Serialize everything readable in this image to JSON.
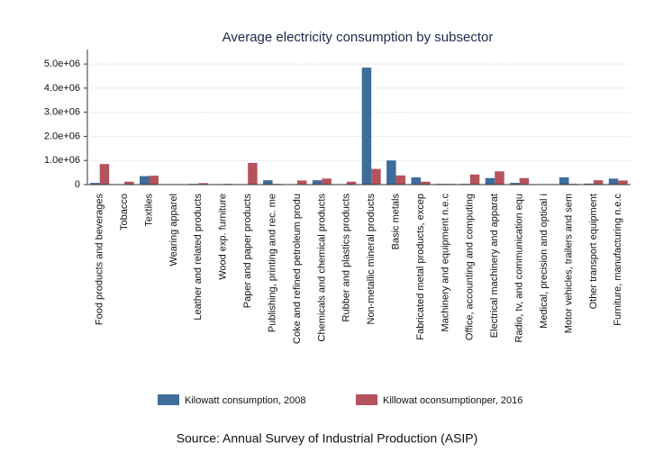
{
  "chart_data": {
    "type": "bar",
    "title": "Average electricity consumption by subsector",
    "categories": [
      "Food products and beverages",
      "Tobacco",
      "Textiles",
      "Wearing apparel",
      "Leather and related products",
      "Wood exp. furniture",
      "Paper and paper products",
      "Publishing, printing and rec. me",
      "Coke and refined petroleum produ",
      "Chemicals and chemical products",
      "Rubber and plastics products",
      "Non-metallic mineral products",
      "Basic metals",
      "Fabricated metal products, excep",
      "Machinery and equipment n.e.c",
      "Office, accounting and computing",
      "Electrical machinery and apparat",
      "Radio, tv, and communication equ",
      "Medical, precision and optical i",
      "Motor vehicles, trailers and sem",
      "Other transport equipment",
      "Furniture,  manufacturing n.e.c"
    ],
    "series": [
      {
        "name": "Kilowatt consumption, 2008",
        "color": "#3e6d9c",
        "values": [
          70000,
          20000,
          350000,
          20000,
          30000,
          20000,
          20000,
          180000,
          20000,
          180000,
          20000,
          4850000,
          1000000,
          300000,
          30000,
          30000,
          270000,
          70000,
          10000,
          300000,
          40000,
          250000
        ]
      },
      {
        "name": "Killowat oconsumptionper, 2016",
        "color": "#b5535c",
        "values": [
          850000,
          120000,
          370000,
          20000,
          60000,
          30000,
          900000,
          30000,
          170000,
          250000,
          120000,
          650000,
          380000,
          120000,
          30000,
          420000,
          550000,
          270000,
          10000,
          30000,
          180000,
          170000
        ]
      }
    ],
    "ylim": [
      0,
      5600000
    ],
    "yticks": [
      0,
      {
        "value": 1000000,
        "label": "1.0e+06"
      },
      {
        "value": 2000000,
        "label": "2.0e+06"
      },
      {
        "value": 3000000,
        "label": "3.0e+06"
      },
      {
        "value": 4000000,
        "label": "4.0e+06"
      },
      {
        "value": 5000000,
        "label": "5.0e+06"
      }
    ],
    "grid": true,
    "legend": "bottom",
    "source": "Source: Annual Survey of Industrial Production (ASIP)"
  }
}
